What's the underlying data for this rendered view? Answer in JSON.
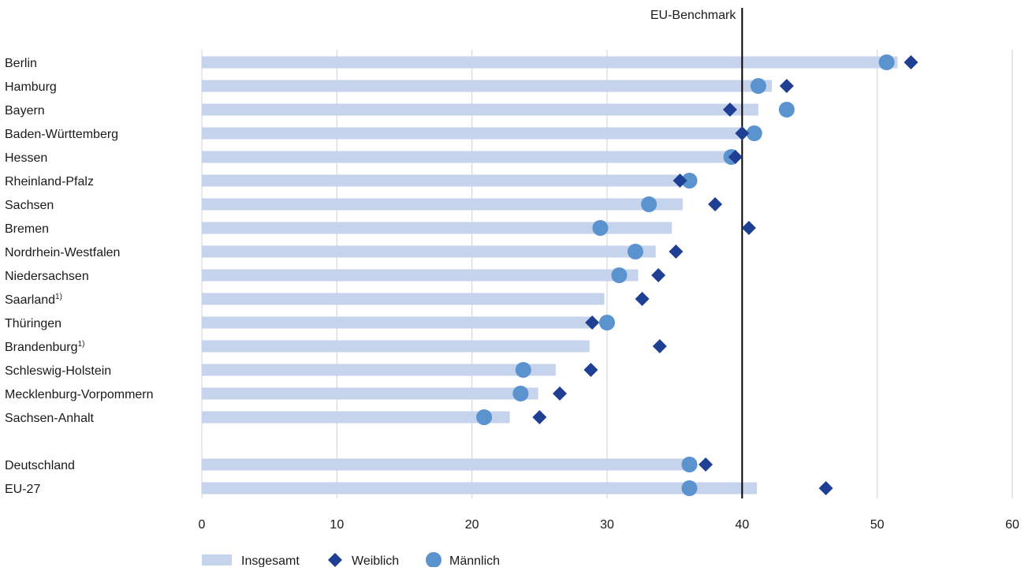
{
  "chart_data": {
    "type": "bar",
    "orientation": "horizontal",
    "categories": [
      {
        "label": "Berlin",
        "sup": ""
      },
      {
        "label": "Hamburg",
        "sup": ""
      },
      {
        "label": "Bayern",
        "sup": ""
      },
      {
        "label": "Baden-Württemberg",
        "sup": ""
      },
      {
        "label": "Hessen",
        "sup": ""
      },
      {
        "label": "Rheinland-Pfalz",
        "sup": ""
      },
      {
        "label": "Sachsen",
        "sup": ""
      },
      {
        "label": "Bremen",
        "sup": ""
      },
      {
        "label": "Nordrhein-Westfalen",
        "sup": ""
      },
      {
        "label": "Niedersachsen",
        "sup": ""
      },
      {
        "label": "Saarland",
        "sup": "1)"
      },
      {
        "label": "Thüringen",
        "sup": ""
      },
      {
        "label": "Brandenburg",
        "sup": "1)"
      },
      {
        "label": "Schleswig-Holstein",
        "sup": ""
      },
      {
        "label": "Mecklenburg-Vorpommern",
        "sup": ""
      },
      {
        "label": "Sachsen-Anhalt",
        "sup": ""
      },
      {
        "label": "Deutschland",
        "sup": ""
      },
      {
        "label": "EU-27",
        "sup": ""
      }
    ],
    "group_break_after_index": 15,
    "series": [
      {
        "name": "Insgesamt",
        "marker": "bar",
        "color": "#c5d3ec",
        "values": [
          51.5,
          42.2,
          41.2,
          40.1,
          39.1,
          35.5,
          35.6,
          34.8,
          33.6,
          32.3,
          29.8,
          29.0,
          28.7,
          26.2,
          24.9,
          22.8,
          36.0,
          41.1
        ]
      },
      {
        "name": "Weiblich",
        "marker": "diamond",
        "color": "#1f3f94",
        "values": [
          52.5,
          43.3,
          39.1,
          40.0,
          39.5,
          35.4,
          38.0,
          40.5,
          35.1,
          33.8,
          32.6,
          28.9,
          33.9,
          28.8,
          26.5,
          25.0,
          37.3,
          46.2
        ]
      },
      {
        "name": "Männlich",
        "marker": "circle",
        "color": "#5b93cf",
        "values": [
          50.7,
          41.2,
          43.3,
          40.9,
          39.2,
          36.1,
          33.1,
          29.5,
          32.1,
          30.9,
          null,
          30.0,
          null,
          23.8,
          23.6,
          20.9,
          36.1,
          36.1
        ]
      }
    ],
    "xlim": [
      0,
      60
    ],
    "xticks": [
      "0",
      "10",
      "20",
      "30",
      "40",
      "50",
      "60"
    ],
    "xgrid": true,
    "reference_line": {
      "value": 40,
      "label": "EU-Benchmark",
      "color": "#000000"
    },
    "legend_position": "bottom-left",
    "gridline_color": "#d0d0d0"
  }
}
